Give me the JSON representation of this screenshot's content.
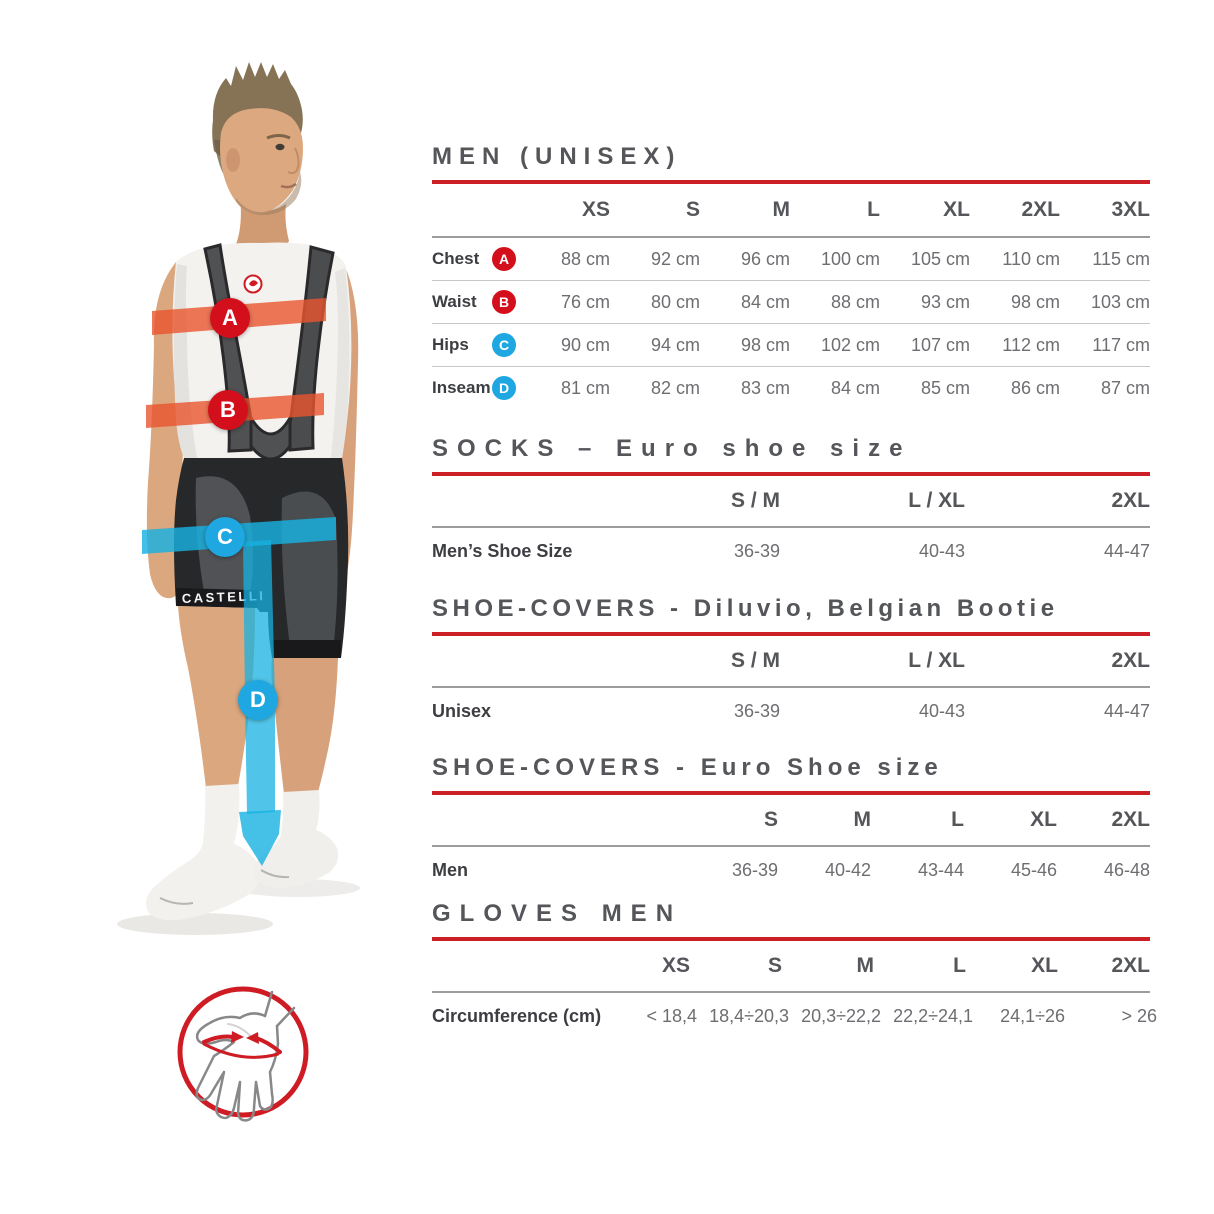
{
  "colors": {
    "accent_red": "#cb2026",
    "marker_red": "#d40f1c",
    "marker_blue": "#1ea7e0",
    "band_orange": "#e8552e",
    "band_cyan": "#17b1e2"
  },
  "figure": {
    "brand_text": "CASTELLI",
    "markers": [
      {
        "letter": "A",
        "color": "#d40f1c"
      },
      {
        "letter": "B",
        "color": "#d40f1c"
      },
      {
        "letter": "C",
        "color": "#1ea7e0"
      },
      {
        "letter": "D",
        "color": "#1ea7e0"
      }
    ]
  },
  "icons": {
    "glove_measure": "hand-circumference-measure-icon"
  },
  "sections": [
    {
      "title": "MEN (UNISEX)",
      "table": {
        "columns": [
          "XS",
          "S",
          "M",
          "L",
          "XL",
          "2XL",
          "3XL"
        ],
        "rows": [
          {
            "label": "Chest",
            "marker": "A",
            "marker_color": "#d40f1c",
            "values": [
              "88 cm",
              "92 cm",
              "96 cm",
              "100 cm",
              "105 cm",
              "110 cm",
              "115 cm"
            ]
          },
          {
            "label": "Waist",
            "marker": "B",
            "marker_color": "#d40f1c",
            "values": [
              "76 cm",
              "80 cm",
              "84 cm",
              "88 cm",
              "93 cm",
              "98 cm",
              "103 cm"
            ]
          },
          {
            "label": "Hips",
            "marker": "C",
            "marker_color": "#1ea7e0",
            "values": [
              "90 cm",
              "94 cm",
              "98 cm",
              "102 cm",
              "107 cm",
              "112 cm",
              "117 cm"
            ]
          },
          {
            "label": "Inseam",
            "marker": "D",
            "marker_color": "#1ea7e0",
            "values": [
              "81 cm",
              "82 cm",
              "83 cm",
              "84 cm",
              "85 cm",
              "86 cm",
              "87 cm"
            ]
          }
        ]
      }
    },
    {
      "title": "SOCKS – Euro shoe size",
      "table": {
        "columns": [
          "S / M",
          "L / XL",
          "2XL"
        ],
        "rows": [
          {
            "label": "Men’s Shoe Size",
            "values": [
              "36-39",
              "40-43",
              "44-47"
            ]
          }
        ]
      }
    },
    {
      "title": "SHOE-COVERS - Diluvio, Belgian Bootie",
      "table": {
        "columns": [
          "S / M",
          "L / XL",
          "2XL"
        ],
        "rows": [
          {
            "label": "Unisex",
            "values": [
              "36-39",
              "40-43",
              "44-47"
            ]
          }
        ]
      }
    },
    {
      "title": "SHOE-COVERS - Euro Shoe size",
      "table": {
        "columns": [
          "S",
          "M",
          "L",
          "XL",
          "2XL"
        ],
        "rows": [
          {
            "label": "Men",
            "values": [
              "36-39",
              "40-42",
              "43-44",
              "45-46",
              "46-48"
            ]
          }
        ]
      }
    },
    {
      "title": "GLOVES MEN",
      "table": {
        "columns": [
          "XS",
          "S",
          "M",
          "L",
          "XL",
          "2XL"
        ],
        "rows": [
          {
            "label": "Circumference (cm)",
            "values": [
              "< 18,4",
              "18,4÷20,3",
              "20,3÷22,2",
              "22,2÷24,1",
              "24,1÷26",
              "> 26"
            ]
          }
        ]
      }
    }
  ]
}
